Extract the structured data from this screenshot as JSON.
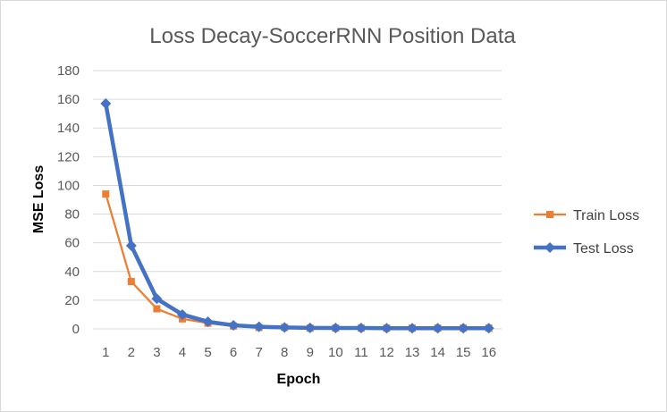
{
  "chart_data": {
    "type": "line",
    "title": "Loss Decay-SoccerRNN Position Data",
    "xlabel": "Epoch",
    "ylabel": "MSE Loss",
    "categories": [
      "1",
      "2",
      "3",
      "4",
      "5",
      "6",
      "7",
      "8",
      "9",
      "10",
      "11",
      "12",
      "13",
      "14",
      "15",
      "16"
    ],
    "ylim": [
      0,
      180
    ],
    "yticks": [
      0,
      20,
      40,
      60,
      80,
      100,
      120,
      140,
      160,
      180
    ],
    "grid": true,
    "legend_position": "right",
    "series": [
      {
        "name": "Train Loss",
        "color": "#ED7D31",
        "marker": "square",
        "values": [
          94,
          33,
          14,
          7,
          4,
          2,
          1,
          1,
          0.5,
          0.5,
          0.5,
          0.5,
          0.5,
          0.5,
          0.5,
          0.5
        ]
      },
      {
        "name": "Test Loss",
        "color": "#4472C4",
        "marker": "diamond",
        "values": [
          157,
          58,
          21,
          10,
          5,
          2.5,
          1.5,
          1,
          0.7,
          0.6,
          0.6,
          0.5,
          0.5,
          0.5,
          0.5,
          0.5
        ]
      }
    ]
  }
}
